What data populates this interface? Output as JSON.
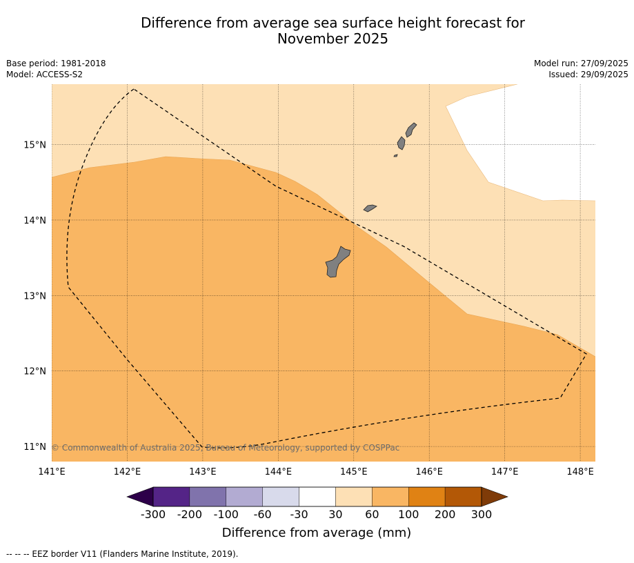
{
  "title": {
    "line1": "Difference from average sea surface height forecast for",
    "line2": "November 2025"
  },
  "meta": {
    "base_period": "Base period: 1981-2018",
    "model": "Model: ACCESS-S2",
    "model_run": "Model run: 27/09/2025",
    "issued": "Issued: 29/09/2025"
  },
  "map": {
    "lon_range": [
      141.0,
      148.2
    ],
    "lat_range": [
      10.8,
      15.8
    ],
    "lon_ticks": [
      {
        "value": 141,
        "label": "141°E"
      },
      {
        "value": 142,
        "label": "142°E"
      },
      {
        "value": 143,
        "label": "143°E"
      },
      {
        "value": 144,
        "label": "144°E"
      },
      {
        "value": 145,
        "label": "145°E"
      },
      {
        "value": 146,
        "label": "146°E"
      },
      {
        "value": 147,
        "label": "147°E"
      },
      {
        "value": 148,
        "label": "148°E"
      }
    ],
    "lat_ticks": [
      {
        "value": 15,
        "label": "15°N"
      },
      {
        "value": 14,
        "label": "14°N"
      },
      {
        "value": 13,
        "label": "13°N"
      },
      {
        "value": 12,
        "label": "12°N"
      },
      {
        "value": 11,
        "label": "11°N"
      }
    ],
    "copyright": "© Commonwealth of Australia 2025, Bureau of Meteorology, supported by COSPPac",
    "category_colors": {
      "30_to_60": "#fde0b5",
      "60_to_100": "#f9b663"
    },
    "land_color": "#808080"
  },
  "colorbar": {
    "title": "Difference from average (mm)",
    "tick_labels": [
      "-300",
      "-200",
      "-100",
      "-60",
      "-30",
      "30",
      "60",
      "100",
      "200",
      "300"
    ],
    "colors": [
      "#2d0049",
      "#542487",
      "#8073ac",
      "#b2abd2",
      "#d8daeb",
      "#ffffff",
      "#fde0b5",
      "#f9b663",
      "#e08214",
      "#b35806",
      "#7f3b08"
    ]
  },
  "footnote": "--  --  -- EEZ border V11 (Flanders Marine Institute, 2019)."
}
